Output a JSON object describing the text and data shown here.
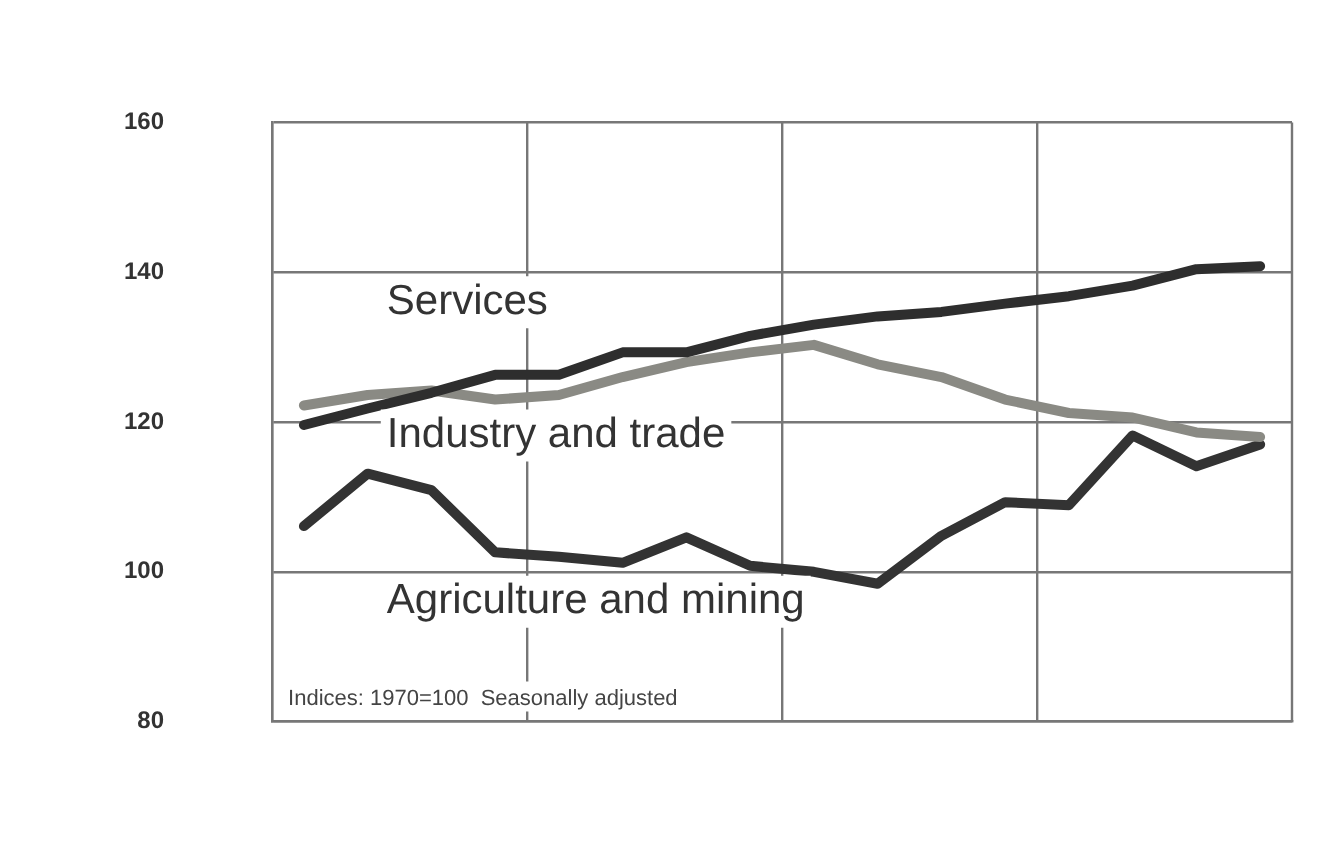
{
  "chart_data": {
    "type": "line",
    "categories": [
      null,
      null,
      null,
      null,
      null,
      null,
      null,
      null,
      null,
      null,
      null,
      null,
      null,
      null,
      null,
      null
    ],
    "ylim": [
      80,
      160
    ],
    "yticks": [
      80,
      100,
      120,
      140,
      160
    ],
    "grid": true,
    "legend": false,
    "tick_labels": "y",
    "annotations": [
      "Indices: 1970=100  Seasonally adjusted"
    ],
    "series": [
      {
        "name": "Services",
        "color": "#2e2e2e",
        "values": [
          119.6,
          121.8,
          123.9,
          126.3,
          126.3,
          129.3,
          129.3,
          131.5,
          133,
          134.1,
          134.7,
          135.8,
          136.8,
          138.2,
          140.4,
          140.8
        ]
      },
      {
        "name": "Industry and trade",
        "color": "#8a8a84",
        "values": [
          122.2,
          123.6,
          124.2,
          123,
          123.6,
          126,
          128,
          129.3,
          130.3,
          127.7,
          126,
          123,
          121.2,
          120.6,
          118.6,
          118
        ]
      },
      {
        "name": "Agriculture and mining",
        "color": "#333333",
        "values": [
          106.1,
          113.1,
          110.9,
          102.6,
          102,
          101.2,
          104.6,
          100.8,
          100,
          98.4,
          104.8,
          109.3,
          108.9,
          118.2,
          114.1,
          117
        ]
      }
    ]
  }
}
